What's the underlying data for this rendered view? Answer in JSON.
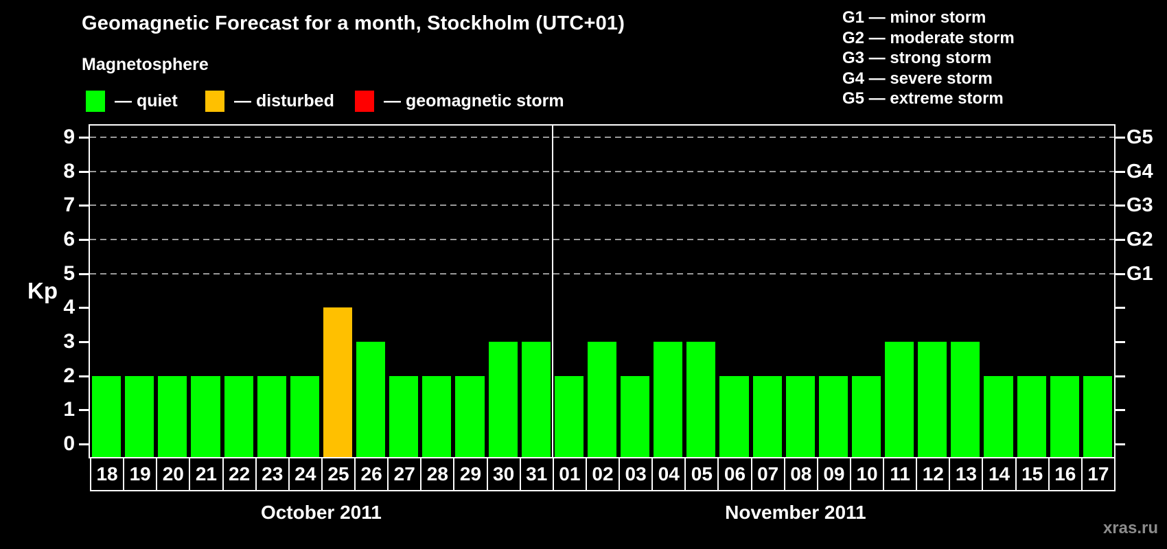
{
  "header": {
    "title": "Geomagnetic Forecast for a month, Stockholm (UTC+01)"
  },
  "magnetosphere_legend": {
    "title": "Magnetosphere",
    "items": [
      {
        "label": "— quiet",
        "color": "#00ff00"
      },
      {
        "label": "— disturbed",
        "color": "#ffc000"
      },
      {
        "label": "— geomagnetic storm",
        "color": "#ff0000"
      }
    ]
  },
  "storm_scale_legend": {
    "items": [
      "G1 — minor storm",
      "G2 — moderate storm",
      "G3 — strong storm",
      "G4 — severe storm",
      "G5 — extreme storm"
    ]
  },
  "watermark": "xras.ru",
  "chart_data": {
    "type": "bar",
    "ylabel": "Kp",
    "ylim": [
      0,
      9
    ],
    "y_ticks": [
      0,
      1,
      2,
      3,
      4,
      5,
      6,
      7,
      8,
      9
    ],
    "gridlines_at": [
      5,
      6,
      7,
      8,
      9
    ],
    "grid_style": "dashed",
    "right_axis_labels": [
      {
        "kp": 5,
        "label": "G1"
      },
      {
        "kp": 6,
        "label": "G2"
      },
      {
        "kp": 7,
        "label": "G3"
      },
      {
        "kp": 8,
        "label": "G4"
      },
      {
        "kp": 9,
        "label": "G5"
      }
    ],
    "colors": {
      "quiet": "#00ff00",
      "disturbed": "#ffc000",
      "storm": "#ff0000"
    },
    "months": [
      {
        "label": "October 2011",
        "days": [
          {
            "day": "18",
            "kp": 2,
            "state": "quiet"
          },
          {
            "day": "19",
            "kp": 2,
            "state": "quiet"
          },
          {
            "day": "20",
            "kp": 2,
            "state": "quiet"
          },
          {
            "day": "21",
            "kp": 2,
            "state": "quiet"
          },
          {
            "day": "22",
            "kp": 2,
            "state": "quiet"
          },
          {
            "day": "23",
            "kp": 2,
            "state": "quiet"
          },
          {
            "day": "24",
            "kp": 2,
            "state": "quiet"
          },
          {
            "day": "25",
            "kp": 4,
            "state": "disturbed"
          },
          {
            "day": "26",
            "kp": 3,
            "state": "quiet"
          },
          {
            "day": "27",
            "kp": 2,
            "state": "quiet"
          },
          {
            "day": "28",
            "kp": 2,
            "state": "quiet"
          },
          {
            "day": "29",
            "kp": 2,
            "state": "quiet"
          },
          {
            "day": "30",
            "kp": 3,
            "state": "quiet"
          },
          {
            "day": "31",
            "kp": 3,
            "state": "quiet"
          }
        ]
      },
      {
        "label": "November 2011",
        "days": [
          {
            "day": "01",
            "kp": 2,
            "state": "quiet"
          },
          {
            "day": "02",
            "kp": 3,
            "state": "quiet"
          },
          {
            "day": "03",
            "kp": 2,
            "state": "quiet"
          },
          {
            "day": "04",
            "kp": 3,
            "state": "quiet"
          },
          {
            "day": "05",
            "kp": 3,
            "state": "quiet"
          },
          {
            "day": "06",
            "kp": 2,
            "state": "quiet"
          },
          {
            "day": "07",
            "kp": 2,
            "state": "quiet"
          },
          {
            "day": "08",
            "kp": 2,
            "state": "quiet"
          },
          {
            "day": "09",
            "kp": 2,
            "state": "quiet"
          },
          {
            "day": "10",
            "kp": 2,
            "state": "quiet"
          },
          {
            "day": "11",
            "kp": 3,
            "state": "quiet"
          },
          {
            "day": "12",
            "kp": 3,
            "state": "quiet"
          },
          {
            "day": "13",
            "kp": 3,
            "state": "quiet"
          },
          {
            "day": "14",
            "kp": 2,
            "state": "quiet"
          },
          {
            "day": "15",
            "kp": 2,
            "state": "quiet"
          },
          {
            "day": "16",
            "kp": 2,
            "state": "quiet"
          },
          {
            "day": "17",
            "kp": 2,
            "state": "quiet"
          }
        ]
      }
    ]
  }
}
